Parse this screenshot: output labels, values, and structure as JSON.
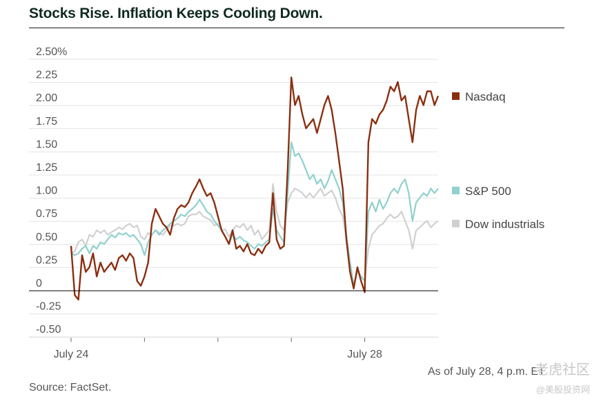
{
  "title": "Stocks Rise. Inflation Keeps Cooling Down.",
  "note": "As of July 28, 4 p.m. ET",
  "source": "Source: FactSet.",
  "watermark_top": "老虎社区",
  "watermark_bottom": "@美股投资网",
  "colors": {
    "nasdaq": "#8b2e10",
    "sp500": "#8fd1cd",
    "dow": "#cfd0d2",
    "grid": "#e3e3e3",
    "zero": "#000000"
  },
  "chart_data": {
    "type": "line",
    "x_range": [
      0,
      100
    ],
    "x_ticks": [
      {
        "x": 0,
        "label": "July 24"
      },
      {
        "x": 20,
        "label": ""
      },
      {
        "x": 40,
        "label": ""
      },
      {
        "x": 60,
        "label": ""
      },
      {
        "x": 80,
        "label": "July 28"
      }
    ],
    "ylim": [
      -0.6,
      2.5
    ],
    "y_ticks": [
      {
        "v": 2.5,
        "label": "2.50%"
      },
      {
        "v": 2.25,
        "label": "2.25"
      },
      {
        "v": 2.0,
        "label": "2.00"
      },
      {
        "v": 1.75,
        "label": "1.75"
      },
      {
        "v": 1.5,
        "label": "1.50"
      },
      {
        "v": 1.25,
        "label": "1.25"
      },
      {
        "v": 1.0,
        "label": "1.00"
      },
      {
        "v": 0.75,
        "label": "0.75"
      },
      {
        "v": 0.5,
        "label": "0.50"
      },
      {
        "v": 0.25,
        "label": "0.25"
      },
      {
        "v": 0.0,
        "label": "0"
      },
      {
        "v": -0.25,
        "label": "-0.25"
      },
      {
        "v": -0.5,
        "label": "-0.50"
      }
    ],
    "legend_position": "right",
    "series": [
      {
        "key": "dow",
        "name": "Dow industrials",
        "points": [
          [
            0,
            0.3
          ],
          [
            1,
            0.32
          ],
          [
            2,
            0.42
          ],
          [
            3,
            0.45
          ],
          [
            4,
            0.38
          ],
          [
            5,
            0.5
          ],
          [
            6,
            0.48
          ],
          [
            7,
            0.55
          ],
          [
            8,
            0.52
          ],
          [
            9,
            0.55
          ],
          [
            10,
            0.5
          ],
          [
            11,
            0.53
          ],
          [
            12,
            0.55
          ],
          [
            13,
            0.58
          ],
          [
            14,
            0.56
          ],
          [
            15,
            0.6
          ],
          [
            16,
            0.62
          ],
          [
            17,
            0.58
          ],
          [
            18,
            0.6
          ],
          [
            19,
            0.48
          ],
          [
            20,
            0.45
          ],
          [
            21,
            0.52
          ],
          [
            22,
            0.5
          ],
          [
            23,
            0.55
          ],
          [
            24,
            0.52
          ],
          [
            25,
            0.5
          ],
          [
            26,
            0.55
          ],
          [
            27,
            0.6
          ],
          [
            28,
            0.6
          ],
          [
            29,
            0.62
          ],
          [
            30,
            0.6
          ],
          [
            31,
            0.62
          ],
          [
            32,
            0.7
          ],
          [
            33,
            0.72
          ],
          [
            34,
            0.72
          ],
          [
            35,
            0.75
          ],
          [
            36,
            0.7
          ],
          [
            37,
            0.68
          ],
          [
            38,
            0.66
          ],
          [
            39,
            0.6
          ],
          [
            40,
            0.62
          ],
          [
            41,
            0.55
          ],
          [
            42,
            0.56
          ],
          [
            43,
            0.48
          ],
          [
            44,
            0.55
          ],
          [
            45,
            0.6
          ],
          [
            46,
            0.58
          ],
          [
            47,
            0.62
          ],
          [
            48,
            0.55
          ],
          [
            49,
            0.6
          ],
          [
            50,
            0.5
          ],
          [
            51,
            0.55
          ],
          [
            52,
            0.45
          ],
          [
            53,
            0.5
          ],
          [
            54,
            0.55
          ],
          [
            55,
            1.05
          ],
          [
            56,
            0.75
          ],
          [
            57,
            0.6
          ],
          [
            58,
            0.55
          ],
          [
            59,
            0.85
          ],
          [
            60,
            0.95
          ],
          [
            61,
            1.0
          ],
          [
            62,
            0.98
          ],
          [
            63,
            0.95
          ],
          [
            64,
            0.9
          ],
          [
            65,
            0.95
          ],
          [
            66,
            0.9
          ],
          [
            67,
            0.95
          ],
          [
            68,
            1.0
          ],
          [
            69,
            0.92
          ],
          [
            70,
            0.95
          ],
          [
            71,
            0.98
          ],
          [
            72,
            0.9
          ],
          [
            73,
            0.78
          ],
          [
            74,
            0.7
          ],
          [
            75,
            0.45
          ],
          [
            76,
            0.2
          ],
          [
            77,
            -0.05
          ],
          [
            78,
            0.1
          ],
          [
            79,
            0.05
          ],
          [
            80,
            0.0
          ],
          [
            81,
            0.35
          ],
          [
            82,
            0.5
          ],
          [
            83,
            0.55
          ],
          [
            84,
            0.6
          ],
          [
            85,
            0.62
          ],
          [
            86,
            0.68
          ],
          [
            87,
            0.72
          ],
          [
            88,
            0.68
          ],
          [
            89,
            0.7
          ],
          [
            90,
            0.75
          ],
          [
            91,
            0.65
          ],
          [
            92,
            0.55
          ],
          [
            93,
            0.35
          ],
          [
            94,
            0.55
          ],
          [
            95,
            0.58
          ],
          [
            96,
            0.62
          ],
          [
            97,
            0.65
          ],
          [
            98,
            0.58
          ],
          [
            99,
            0.62
          ],
          [
            100,
            0.65
          ]
        ]
      },
      {
        "key": "sp500",
        "name": "S&P 500",
        "points": [
          [
            0,
            0.3
          ],
          [
            1,
            0.28
          ],
          [
            2,
            0.3
          ],
          [
            3,
            0.35
          ],
          [
            4,
            0.38
          ],
          [
            5,
            0.3
          ],
          [
            6,
            0.38
          ],
          [
            7,
            0.35
          ],
          [
            8,
            0.42
          ],
          [
            9,
            0.4
          ],
          [
            10,
            0.45
          ],
          [
            11,
            0.5
          ],
          [
            12,
            0.47
          ],
          [
            13,
            0.52
          ],
          [
            14,
            0.5
          ],
          [
            15,
            0.52
          ],
          [
            16,
            0.48
          ],
          [
            17,
            0.5
          ],
          [
            18,
            0.45
          ],
          [
            19,
            0.4
          ],
          [
            20,
            0.28
          ],
          [
            21,
            0.42
          ],
          [
            22,
            0.5
          ],
          [
            23,
            0.55
          ],
          [
            24,
            0.5
          ],
          [
            25,
            0.55
          ],
          [
            26,
            0.58
          ],
          [
            27,
            0.62
          ],
          [
            28,
            0.65
          ],
          [
            29,
            0.68
          ],
          [
            30,
            0.72
          ],
          [
            31,
            0.7
          ],
          [
            32,
            0.75
          ],
          [
            33,
            0.78
          ],
          [
            34,
            0.82
          ],
          [
            35,
            0.88
          ],
          [
            36,
            0.82
          ],
          [
            37,
            0.75
          ],
          [
            38,
            0.72
          ],
          [
            39,
            0.65
          ],
          [
            40,
            0.6
          ],
          [
            41,
            0.55
          ],
          [
            42,
            0.48
          ],
          [
            43,
            0.4
          ],
          [
            44,
            0.5
          ],
          [
            45,
            0.45
          ],
          [
            46,
            0.48
          ],
          [
            47,
            0.44
          ],
          [
            48,
            0.42
          ],
          [
            49,
            0.38
          ],
          [
            50,
            0.35
          ],
          [
            51,
            0.4
          ],
          [
            52,
            0.38
          ],
          [
            53,
            0.42
          ],
          [
            54,
            0.45
          ],
          [
            55,
            0.78
          ],
          [
            56,
            0.55
          ],
          [
            57,
            0.48
          ],
          [
            58,
            0.42
          ],
          [
            59,
            0.95
          ],
          [
            60,
            1.5
          ],
          [
            61,
            1.35
          ],
          [
            62,
            1.38
          ],
          [
            63,
            1.3
          ],
          [
            64,
            1.2
          ],
          [
            65,
            1.1
          ],
          [
            66,
            1.15
          ],
          [
            67,
            1.05
          ],
          [
            68,
            1.1
          ],
          [
            69,
            1.0
          ],
          [
            70,
            1.08
          ],
          [
            71,
            1.2
          ],
          [
            72,
            1.1
          ],
          [
            73,
            1.0
          ],
          [
            74,
            0.85
          ],
          [
            75,
            0.5
          ],
          [
            76,
            0.2
          ],
          [
            77,
            -0.05
          ],
          [
            78,
            0.12
          ],
          [
            79,
            0.05
          ],
          [
            80,
            0.0
          ],
          [
            81,
            0.75
          ],
          [
            82,
            0.85
          ],
          [
            83,
            0.75
          ],
          [
            84,
            0.88
          ],
          [
            85,
            0.78
          ],
          [
            86,
            0.85
          ],
          [
            87,
            0.95
          ],
          [
            88,
            1.0
          ],
          [
            89,
            0.95
          ],
          [
            90,
            1.05
          ],
          [
            91,
            1.1
          ],
          [
            92,
            0.95
          ],
          [
            93,
            0.65
          ],
          [
            94,
            0.85
          ],
          [
            95,
            0.9
          ],
          [
            96,
            0.95
          ],
          [
            97,
            0.92
          ],
          [
            98,
            1.0
          ],
          [
            99,
            0.95
          ],
          [
            100,
            1.0
          ]
        ]
      },
      {
        "key": "nasdaq",
        "name": "Nasdaq",
        "points": [
          [
            0,
            0.38
          ],
          [
            1,
            -0.15
          ],
          [
            2,
            -0.2
          ],
          [
            3,
            0.28
          ],
          [
            4,
            0.1
          ],
          [
            5,
            0.15
          ],
          [
            6,
            0.3
          ],
          [
            7,
            0.05
          ],
          [
            8,
            0.2
          ],
          [
            9,
            0.1
          ],
          [
            10,
            0.15
          ],
          [
            11,
            0.2
          ],
          [
            12,
            0.12
          ],
          [
            13,
            0.25
          ],
          [
            14,
            0.28
          ],
          [
            15,
            0.22
          ],
          [
            16,
            0.3
          ],
          [
            17,
            0.25
          ],
          [
            18,
            0.0
          ],
          [
            19,
            -0.05
          ],
          [
            20,
            0.05
          ],
          [
            21,
            0.2
          ],
          [
            22,
            0.62
          ],
          [
            23,
            0.78
          ],
          [
            24,
            0.7
          ],
          [
            25,
            0.62
          ],
          [
            26,
            0.58
          ],
          [
            27,
            0.5
          ],
          [
            28,
            0.68
          ],
          [
            29,
            0.78
          ],
          [
            30,
            0.82
          ],
          [
            31,
            0.8
          ],
          [
            32,
            0.85
          ],
          [
            33,
            0.95
          ],
          [
            34,
            1.02
          ],
          [
            35,
            1.1
          ],
          [
            36,
            1.0
          ],
          [
            37,
            0.92
          ],
          [
            38,
            0.95
          ],
          [
            39,
            0.85
          ],
          [
            40,
            0.7
          ],
          [
            41,
            0.55
          ],
          [
            42,
            0.48
          ],
          [
            43,
            0.4
          ],
          [
            44,
            0.55
          ],
          [
            45,
            0.35
          ],
          [
            46,
            0.38
          ],
          [
            47,
            0.32
          ],
          [
            48,
            0.4
          ],
          [
            49,
            0.3
          ],
          [
            50,
            0.28
          ],
          [
            51,
            0.35
          ],
          [
            52,
            0.3
          ],
          [
            53,
            0.38
          ],
          [
            54,
            0.42
          ],
          [
            55,
            0.95
          ],
          [
            56,
            0.45
          ],
          [
            57,
            0.35
          ],
          [
            58,
            0.38
          ],
          [
            59,
            1.2
          ],
          [
            60,
            2.2
          ],
          [
            61,
            1.9
          ],
          [
            62,
            2.0
          ],
          [
            63,
            1.8
          ],
          [
            64,
            1.65
          ],
          [
            65,
            1.7
          ],
          [
            66,
            1.75
          ],
          [
            67,
            1.6
          ],
          [
            68,
            1.75
          ],
          [
            69,
            1.9
          ],
          [
            70,
            2.0
          ],
          [
            71,
            1.85
          ],
          [
            72,
            1.6
          ],
          [
            73,
            1.3
          ],
          [
            74,
            1.0
          ],
          [
            75,
            0.45
          ],
          [
            76,
            0.1
          ],
          [
            77,
            -0.08
          ],
          [
            78,
            0.15
          ],
          [
            79,
            0.0
          ],
          [
            80,
            -0.12
          ],
          [
            81,
            1.5
          ],
          [
            82,
            1.75
          ],
          [
            83,
            1.7
          ],
          [
            84,
            1.8
          ],
          [
            85,
            1.85
          ],
          [
            86,
            1.95
          ],
          [
            87,
            2.1
          ],
          [
            88,
            2.05
          ],
          [
            89,
            2.15
          ],
          [
            90,
            1.95
          ],
          [
            91,
            2.0
          ],
          [
            92,
            1.75
          ],
          [
            93,
            1.5
          ],
          [
            94,
            1.85
          ],
          [
            95,
            2.0
          ],
          [
            96,
            1.9
          ],
          [
            97,
            2.05
          ],
          [
            98,
            2.05
          ],
          [
            99,
            1.9
          ],
          [
            100,
            2.0
          ]
        ]
      }
    ]
  }
}
